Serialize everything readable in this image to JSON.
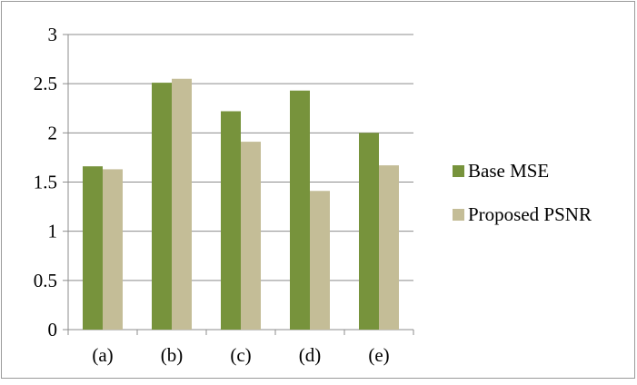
{
  "chart_data": {
    "type": "bar",
    "categories": [
      "(a)",
      "(b)",
      "(c)",
      "(d)",
      "(e)"
    ],
    "series": [
      {
        "name": "Base MSE",
        "color": "#77933C",
        "values": [
          1.66,
          2.51,
          2.22,
          2.43,
          2.0
        ]
      },
      {
        "name": "Proposed PSNR",
        "color": "#C4BD97",
        "values": [
          1.63,
          2.55,
          1.91,
          1.41,
          1.67
        ]
      }
    ],
    "title": "",
    "xlabel": "",
    "ylabel": "",
    "ylim": [
      0,
      3
    ],
    "yticks": [
      "0",
      "0.5",
      "1",
      "1.5",
      "2",
      "2.5",
      "3"
    ],
    "ytick_values": [
      0,
      0.5,
      1,
      1.5,
      2,
      2.5,
      3
    ],
    "grid": true,
    "legend_position": "right"
  }
}
